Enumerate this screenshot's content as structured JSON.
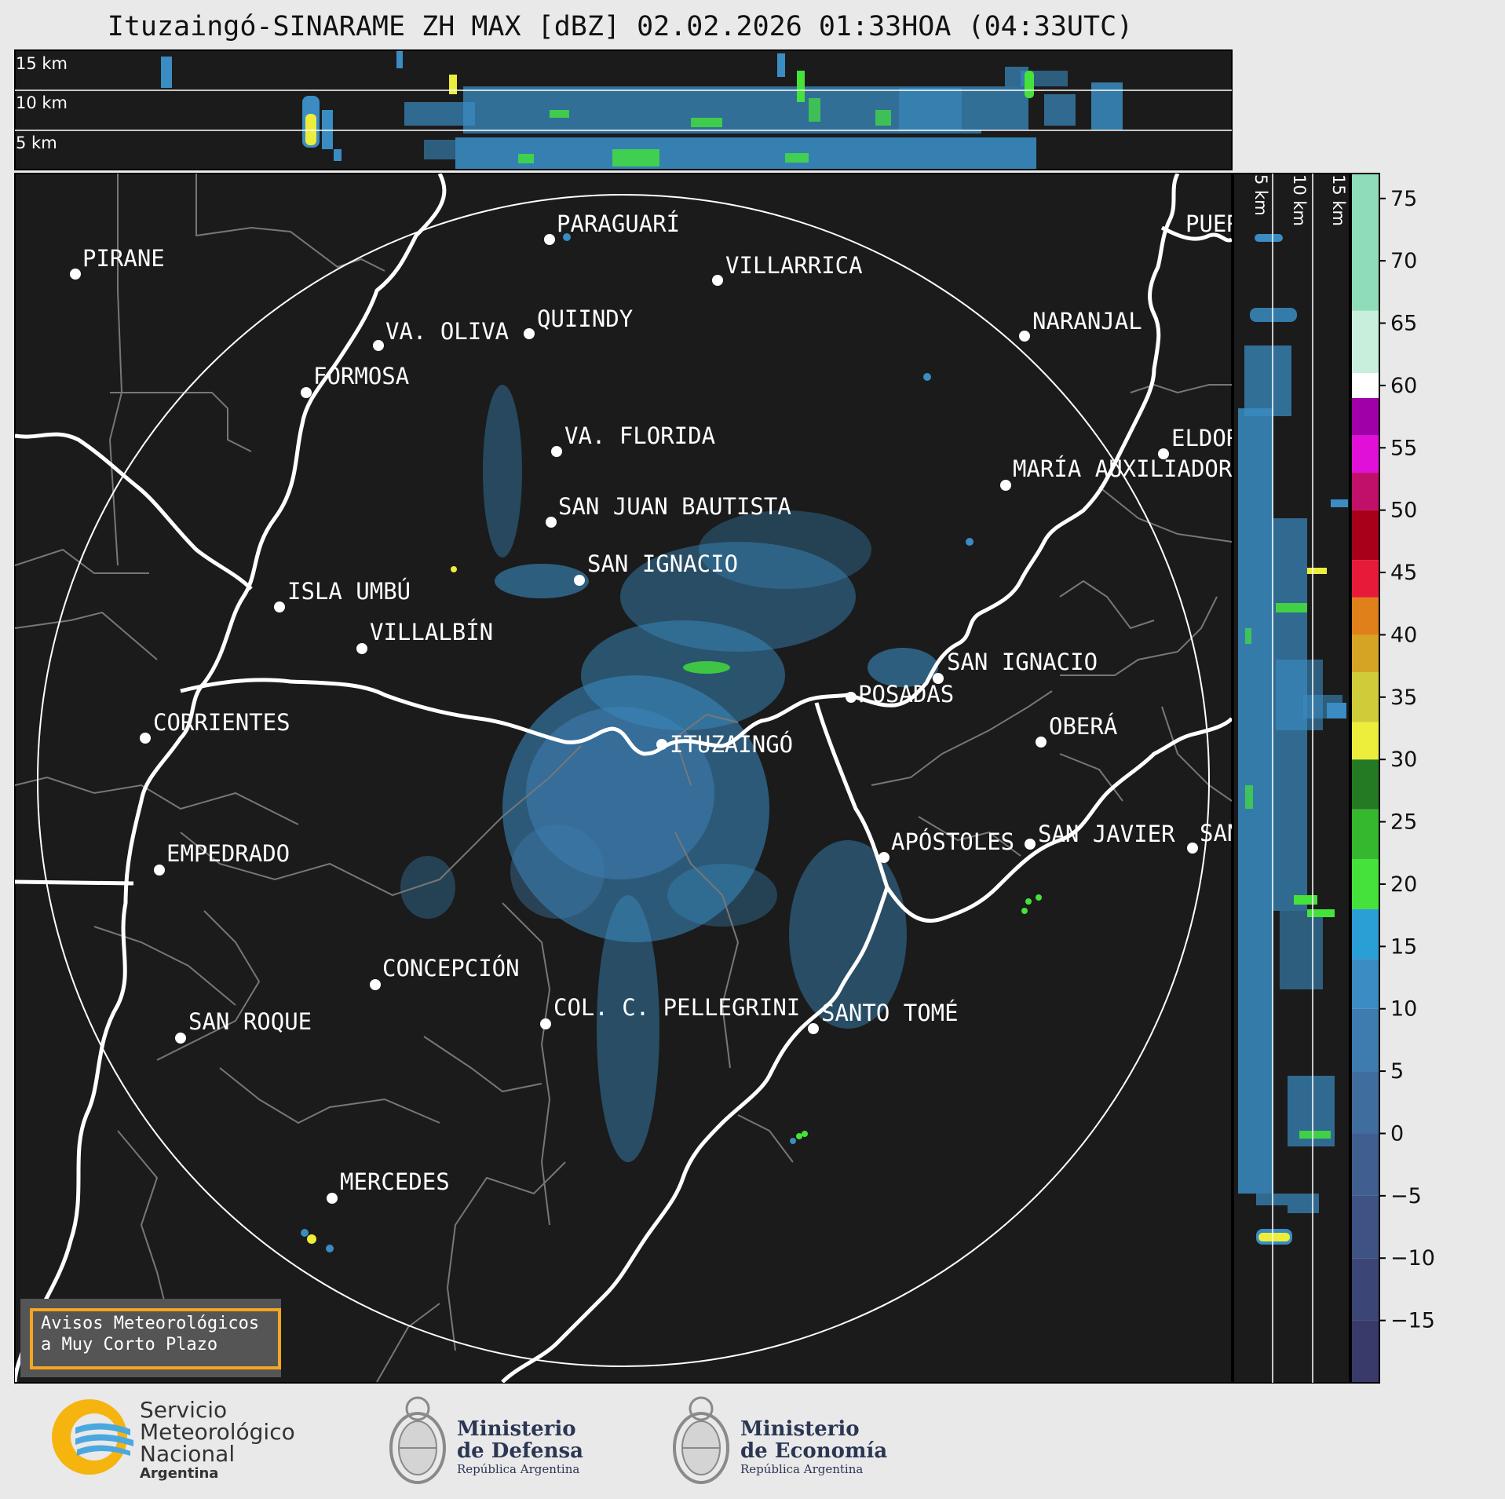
{
  "title": "Ituzaingó-SINARAME ZH MAX [dBZ] 02.02.2026 01:33HOA (04:33UTC)",
  "top_panel_heights": [
    "15 km",
    "10 km",
    "5 km"
  ],
  "side_panel_heights": [
    "5 km",
    "10 km",
    "15 km"
  ],
  "colorbar": {
    "ticks": [
      "75",
      "70",
      "65",
      "60",
      "55",
      "50",
      "45",
      "40",
      "35",
      "30",
      "25",
      "20",
      "15",
      "10",
      "5",
      "0",
      "−5",
      "−10",
      "−15"
    ],
    "min": -20,
    "max": 77,
    "stops": [
      {
        "from": -20,
        "to": -15,
        "color": "#3a3a6a"
      },
      {
        "from": -15,
        "to": -10,
        "color": "#3b4677"
      },
      {
        "from": -10,
        "to": -5,
        "color": "#3e5283"
      },
      {
        "from": -5,
        "to": 0,
        "color": "#405f90"
      },
      {
        "from": 0,
        "to": 5,
        "color": "#3f6d9e"
      },
      {
        "from": 5,
        "to": 10,
        "color": "#3e7cb0"
      },
      {
        "from": 10,
        "to": 14,
        "color": "#3a8cc2"
      },
      {
        "from": 14,
        "to": 18,
        "color": "#2a9fd6"
      },
      {
        "from": 18,
        "to": 22,
        "color": "#44e23a"
      },
      {
        "from": 22,
        "to": 26,
        "color": "#35b82e"
      },
      {
        "from": 26,
        "to": 30,
        "color": "#247a22"
      },
      {
        "from": 30,
        "to": 33,
        "color": "#eded3c"
      },
      {
        "from": 33,
        "to": 37,
        "color": "#cfcc3a"
      },
      {
        "from": 37,
        "to": 40,
        "color": "#d6a424"
      },
      {
        "from": 40,
        "to": 43,
        "color": "#e0801a"
      },
      {
        "from": 43,
        "to": 46,
        "color": "#e81a3a"
      },
      {
        "from": 46,
        "to": 50,
        "color": "#a8001a"
      },
      {
        "from": 50,
        "to": 53,
        "color": "#c0106a"
      },
      {
        "from": 53,
        "to": 56,
        "color": "#e010d8"
      },
      {
        "from": 56,
        "to": 59,
        "color": "#a000a8"
      },
      {
        "from": 59,
        "to": 61,
        "color": "#ffffff"
      },
      {
        "from": 61,
        "to": 66,
        "color": "#c8eedc"
      },
      {
        "from": 66,
        "to": 77,
        "color": "#8edcb8"
      }
    ]
  },
  "cities": [
    {
      "name": "PARAGUARÍ"
    },
    {
      "name": "VILLARRICA"
    },
    {
      "name": "PIRANE"
    },
    {
      "name": "QUIINDY"
    },
    {
      "name": "VA. OLIVA"
    },
    {
      "name": "NARANJAL"
    },
    {
      "name": "FORMOSA"
    },
    {
      "name": "VA. FLORIDA"
    },
    {
      "name": "ELDORADO"
    },
    {
      "name": "MARÍA AUXILIADORA"
    },
    {
      "name": "SAN JUAN BAUTISTA"
    },
    {
      "name": "SAN IGNACIO"
    },
    {
      "name": "ISLA UMBÚ"
    },
    {
      "name": "VILLALBÍN"
    },
    {
      "name": "SAN IGNACIO"
    },
    {
      "name": "POSADAS"
    },
    {
      "name": "CORRIENTES"
    },
    {
      "name": "ITUZAINGÓ"
    },
    {
      "name": "OBERÁ"
    },
    {
      "name": "APÓSTOLES"
    },
    {
      "name": "SAN JAVIER"
    },
    {
      "name": "SAN"
    },
    {
      "name": "EMPEDRADO"
    },
    {
      "name": "CONCEPCIÓN"
    },
    {
      "name": "COL. C. PELLEGRINI"
    },
    {
      "name": "SANTO TOMÉ"
    },
    {
      "name": "SAN ROQUE"
    },
    {
      "name": "MERCEDES"
    },
    {
      "name": "PUERTO"
    }
  ],
  "notice": {
    "line1": "Avisos Meteorológicos",
    "line2": "a Muy Corto Plazo"
  },
  "logos": {
    "smn": {
      "line1": "Servicio",
      "line2": "Meteorológico",
      "line3": "Nacional",
      "line4": "Argentina"
    },
    "defensa": {
      "line1": "Ministerio",
      "line2": "de Defensa",
      "line3": "República Argentina"
    },
    "economia": {
      "line1": "Ministerio",
      "line2": "de Economía",
      "line3": "República Argentina"
    }
  },
  "colors": {
    "panel_bg": "#1b1b1b",
    "page_bg": "#e9e9e9",
    "echo_blue": "#3a8cc2",
    "echo_green": "#44e23a",
    "echo_yellow": "#eded3c"
  }
}
